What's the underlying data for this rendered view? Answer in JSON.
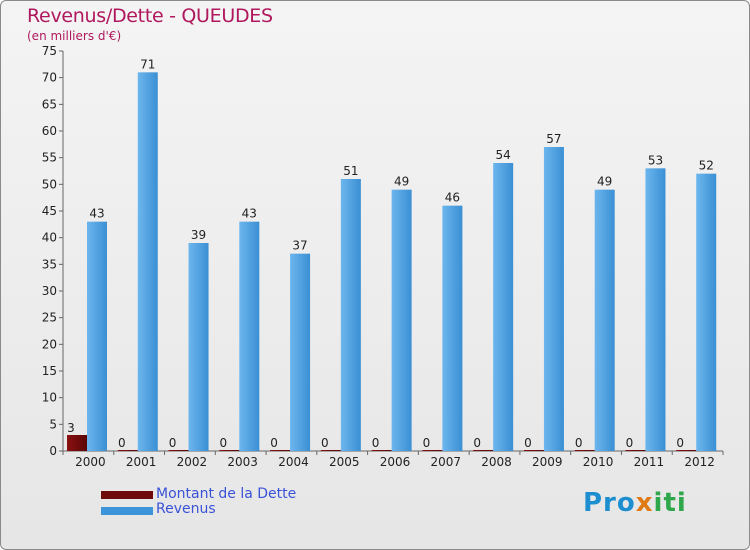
{
  "header": {
    "title": "Revenus/Dette - QUEUDES",
    "subtitle": "(en milliers d'€)"
  },
  "legend": {
    "items": [
      {
        "label": "Montant de la Dette",
        "color": "#6e0a0a"
      },
      {
        "label": "Revenus",
        "color": "#3d94d8"
      }
    ]
  },
  "logo": {
    "part1": "Pro",
    "part2": "x",
    "part3": "iti"
  },
  "chart_data": {
    "type": "bar",
    "title": "Revenus/Dette - QUEUDES",
    "ylabel": "(en milliers d'€)",
    "xlabel": "",
    "categories": [
      "2000",
      "2001",
      "2002",
      "2003",
      "2004",
      "2005",
      "2006",
      "2007",
      "2008",
      "2009",
      "2010",
      "2011",
      "2012"
    ],
    "series": [
      {
        "name": "Montant de la Dette",
        "color": "#6e0a0a",
        "values": [
          3,
          0,
          0,
          0,
          0,
          0,
          0,
          0,
          0,
          0,
          0,
          0,
          0
        ]
      },
      {
        "name": "Revenus",
        "color": "#3d94d8",
        "values": [
          43,
          71,
          39,
          43,
          37,
          51,
          49,
          46,
          54,
          57,
          49,
          53,
          52
        ]
      }
    ],
    "ylim": [
      0,
      75
    ],
    "yticks": [
      0,
      5,
      10,
      15,
      20,
      25,
      30,
      35,
      40,
      45,
      50,
      55,
      60,
      65,
      70,
      75
    ],
    "grid": false,
    "legend": "bottom-left"
  }
}
